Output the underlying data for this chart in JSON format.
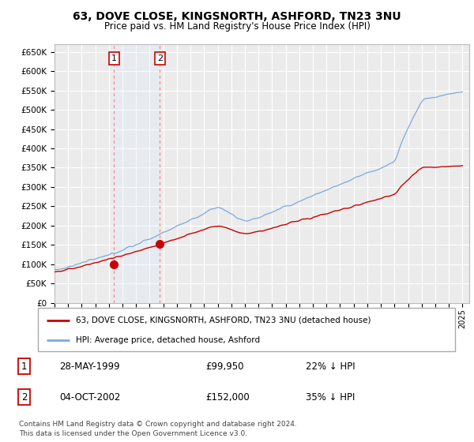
{
  "title": "63, DOVE CLOSE, KINGSNORTH, ASHFORD, TN23 3NU",
  "subtitle": "Price paid vs. HM Land Registry's House Price Index (HPI)",
  "title_fontsize": 10,
  "subtitle_fontsize": 8.5,
  "ylabel_values": [
    0,
    50000,
    100000,
    150000,
    200000,
    250000,
    300000,
    350000,
    400000,
    450000,
    500000,
    550000,
    600000,
    650000
  ],
  "ylim": [
    0,
    670000
  ],
  "xlim_start": 1995.0,
  "xlim_end": 2025.5,
  "background_color": "#ffffff",
  "plot_bg_color": "#ebebeb",
  "grid_color": "#ffffff",
  "hpi_color": "#7aaadd",
  "price_color": "#cc0000",
  "vline_color": "#ff8888",
  "span_color": "#ddeeff",
  "transaction1": {
    "date_num": 1999.37,
    "price": 99950,
    "label": "1"
  },
  "transaction2": {
    "date_num": 2002.75,
    "price": 152000,
    "label": "2"
  },
  "legend_line1": "63, DOVE CLOSE, KINGSNORTH, ASHFORD, TN23 3NU (detached house)",
  "legend_line2": "HPI: Average price, detached house, Ashford",
  "footer": "Contains HM Land Registry data © Crown copyright and database right 2024.\nThis data is licensed under the Open Government Licence v3.0.",
  "table_rows": [
    {
      "num": "1",
      "date": "28-MAY-1999",
      "price": "£99,950",
      "pct": "22% ↓ HPI"
    },
    {
      "num": "2",
      "date": "04-OCT-2002",
      "price": "£152,000",
      "pct": "35% ↓ HPI"
    }
  ]
}
